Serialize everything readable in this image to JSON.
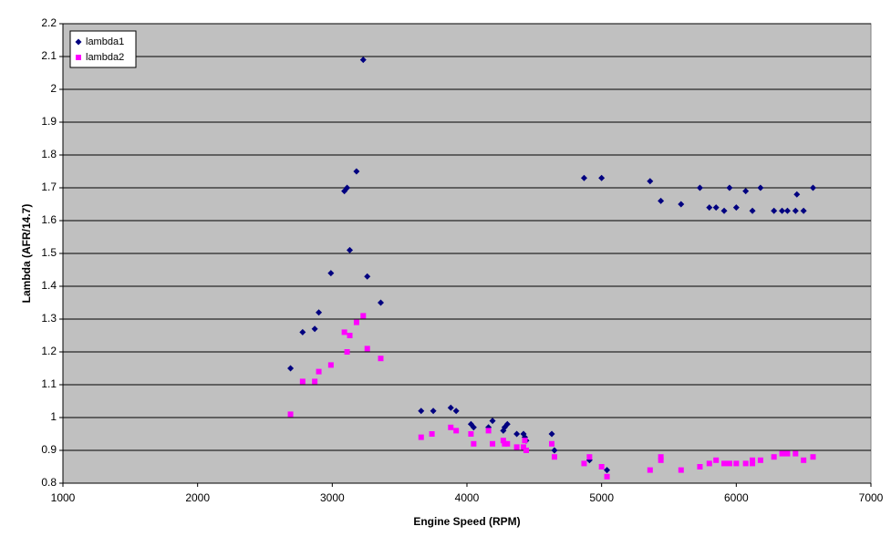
{
  "chart_data": {
    "type": "scatter",
    "x_label": "Engine Speed (RPM)",
    "y_label": "Lambda (AFR/14.7)",
    "xlim": [
      1000,
      7000
    ],
    "xticks": [
      1000,
      2000,
      3000,
      4000,
      5000,
      6000,
      7000
    ],
    "ylim": [
      0.8,
      2.2
    ],
    "yticks": [
      0.8,
      0.9,
      1,
      1.1,
      1.2,
      1.3,
      1.4,
      1.5,
      1.6,
      1.7,
      1.8,
      1.9,
      2,
      2.1,
      2.2
    ],
    "grid": true,
    "legend": "top-left",
    "background": "#c0c0c0",
    "series": [
      {
        "name": "lambda1",
        "color": "#000080",
        "marker": "diamond",
        "x": [
          2690,
          2780,
          2870,
          2900,
          2990,
          3090,
          3110,
          3130,
          3180,
          3230,
          3260,
          3360,
          3660,
          3750,
          3880,
          3920,
          4030,
          4050,
          4160,
          4190,
          4270,
          4280,
          4300,
          4370,
          4420,
          4430,
          4440,
          4630,
          4650,
          4870,
          4910,
          5000,
          5040,
          5360,
          5440,
          5590,
          5730,
          5800,
          5850,
          5910,
          5950,
          6000,
          6070,
          6120,
          6180,
          6280,
          6340,
          6380,
          6440,
          6450,
          6500,
          6570
        ],
        "values": [
          1.15,
          1.26,
          1.27,
          1.32,
          1.44,
          1.69,
          1.7,
          1.51,
          1.75,
          2.09,
          1.43,
          1.35,
          1.02,
          1.02,
          1.03,
          1.02,
          0.98,
          0.97,
          0.97,
          0.99,
          0.96,
          0.97,
          0.98,
          0.95,
          0.95,
          0.94,
          0.93,
          0.95,
          0.9,
          1.73,
          0.87,
          1.73,
          0.84,
          1.72,
          1.66,
          1.65,
          1.7,
          1.64,
          1.64,
          1.63,
          1.7,
          1.64,
          1.69,
          1.63,
          1.7,
          1.63,
          1.63,
          1.63,
          1.63,
          1.68,
          1.63,
          1.7
        ]
      },
      {
        "name": "lambda2",
        "color": "#ff00ff",
        "marker": "square",
        "x": [
          2690,
          2780,
          2870,
          2900,
          2990,
          3090,
          3110,
          3130,
          3180,
          3230,
          3260,
          3360,
          3660,
          3740,
          3880,
          3920,
          4030,
          4050,
          4160,
          4190,
          4270,
          4280,
          4300,
          4370,
          4420,
          4430,
          4440,
          4630,
          4650,
          4870,
          4910,
          5000,
          5040,
          5360,
          5440,
          5440,
          5590,
          5730,
          5800,
          5850,
          5910,
          5950,
          6000,
          6070,
          6120,
          6120,
          6180,
          6280,
          6340,
          6380,
          6440,
          6500,
          6570
        ],
        "values": [
          1.01,
          1.11,
          1.11,
          1.14,
          1.16,
          1.26,
          1.2,
          1.25,
          1.29,
          1.31,
          1.21,
          1.18,
          0.94,
          0.95,
          0.97,
          0.96,
          0.95,
          0.92,
          0.96,
          0.92,
          0.93,
          0.92,
          0.92,
          0.91,
          0.91,
          0.93,
          0.9,
          0.92,
          0.88,
          0.86,
          0.88,
          0.85,
          0.82,
          0.84,
          0.88,
          0.87,
          0.84,
          0.85,
          0.86,
          0.87,
          0.86,
          0.86,
          0.86,
          0.86,
          0.86,
          0.87,
          0.87,
          0.88,
          0.89,
          0.89,
          0.89,
          0.87,
          0.88
        ]
      }
    ]
  }
}
